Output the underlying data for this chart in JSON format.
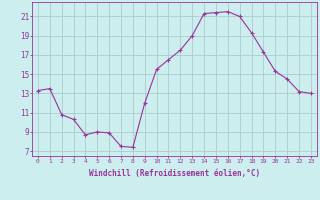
{
  "x": [
    0,
    1,
    2,
    3,
    4,
    5,
    6,
    7,
    8,
    9,
    10,
    11,
    12,
    13,
    14,
    15,
    16,
    17,
    18,
    19,
    20,
    21,
    22,
    23
  ],
  "y": [
    13.3,
    13.5,
    10.8,
    10.3,
    8.7,
    9.0,
    8.9,
    7.5,
    7.4,
    12.0,
    15.5,
    16.5,
    17.5,
    19.0,
    21.3,
    21.4,
    21.5,
    21.0,
    19.3,
    17.3,
    15.3,
    14.5,
    13.2,
    13.0
  ],
  "xlim": [
    -0.5,
    23.5
  ],
  "ylim": [
    6.5,
    22.5
  ],
  "yticks": [
    7,
    9,
    11,
    13,
    15,
    17,
    19,
    21
  ],
  "xticks": [
    0,
    1,
    2,
    3,
    4,
    5,
    6,
    7,
    8,
    9,
    10,
    11,
    12,
    13,
    14,
    15,
    16,
    17,
    18,
    19,
    20,
    21,
    22,
    23
  ],
  "xlabel": "Windchill (Refroidissement éolien,°C)",
  "line_color": "#993399",
  "marker": "+",
  "bg_color": "#cceeee",
  "grid_color": "#aacccc",
  "tick_label_color": "#993399",
  "spine_color": "#993399",
  "axes_label_color": "#993399"
}
